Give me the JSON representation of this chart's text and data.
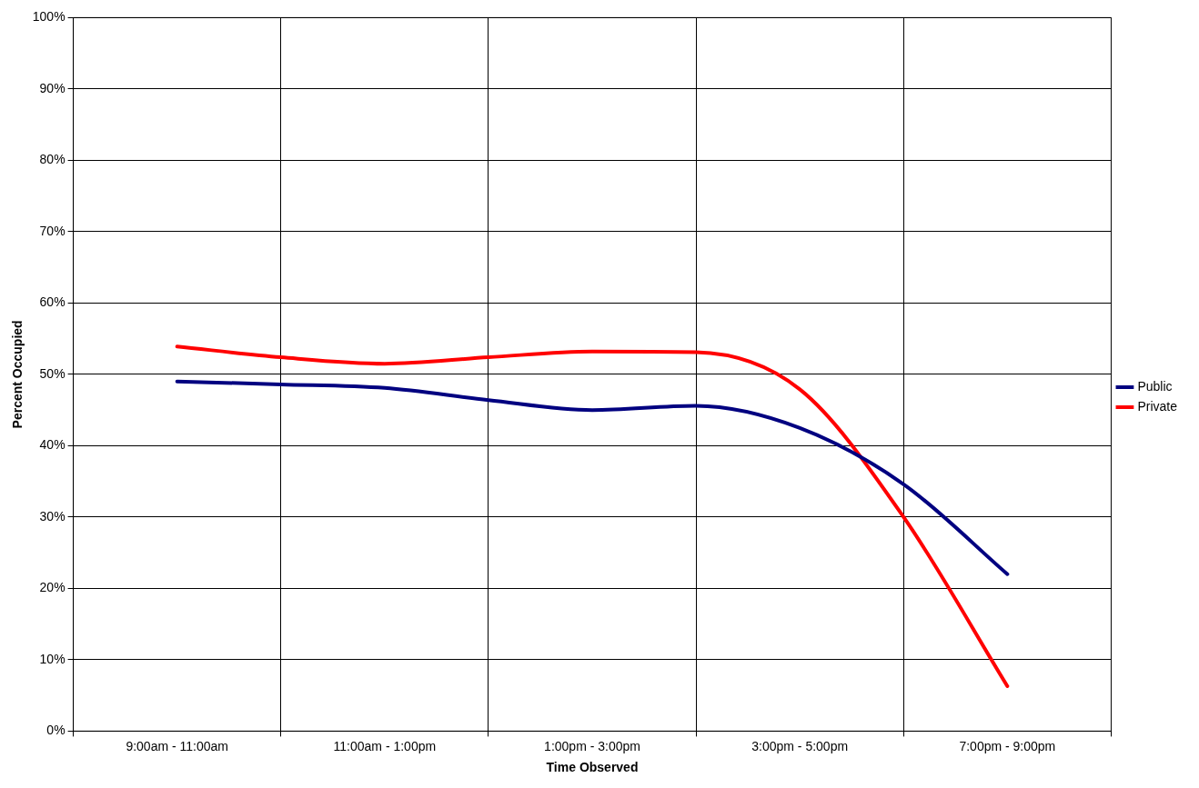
{
  "chart_data": {
    "type": "line",
    "xlabel": "Time Observed",
    "ylabel": "Percent Occupied",
    "categories": [
      "9:00am - 11:00am",
      null,
      "11:00am - 1:00pm",
      null,
      "1:00pm - 3:00pm",
      null,
      "3:00pm - 5:00pm",
      null,
      "7:00pm - 9:00pm"
    ],
    "series": [
      {
        "name": "Public",
        "color": "#000080",
        "values": [
          49.0,
          48.6,
          48.1,
          46.4,
          45.0,
          45.6,
          42.5,
          34.6,
          22.0
        ]
      },
      {
        "name": "Private",
        "color": "#ff0000",
        "values": [
          53.9,
          52.4,
          51.5,
          52.4,
          53.2,
          53.1,
          47.9,
          30.0,
          6.3
        ]
      }
    ],
    "ylim": [
      0,
      100
    ],
    "yticks": [
      {
        "value": 0,
        "label": "0%"
      },
      {
        "value": 10,
        "label": "10%"
      },
      {
        "value": 20,
        "label": "20%"
      },
      {
        "value": 30,
        "label": "30%"
      },
      {
        "value": 40,
        "label": "40%"
      },
      {
        "value": 50,
        "label": "50%"
      },
      {
        "value": 60,
        "label": "60%"
      },
      {
        "value": 70,
        "label": "70%"
      },
      {
        "value": 80,
        "label": "80%"
      },
      {
        "value": 90,
        "label": "90%"
      },
      {
        "value": 100,
        "label": "100%"
      }
    ],
    "grid": true,
    "legend": "right",
    "marker": "none",
    "line_style": "solid"
  }
}
